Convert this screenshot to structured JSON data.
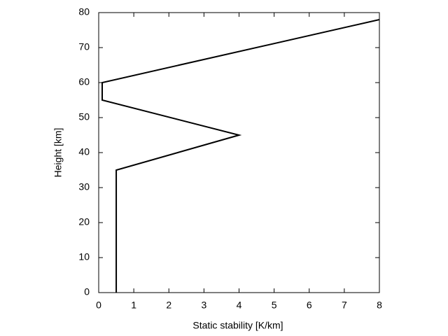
{
  "chart_data": {
    "type": "line",
    "xlabel": "Static stability [K/km]",
    "ylabel": "Height [km]",
    "x": [
      0.5,
      0.5,
      4,
      0.1,
      0.1,
      8
    ],
    "values": [
      0,
      35,
      45,
      55,
      60,
      78
    ],
    "color": "#000000",
    "xlim": [
      0,
      8
    ],
    "xticks": [
      0,
      1,
      2,
      3,
      4,
      5,
      6,
      7,
      8
    ],
    "ylim": [
      0,
      80
    ],
    "yticks": [
      0,
      10,
      20,
      30,
      40,
      50,
      60,
      70,
      80
    ],
    "grid": false
  }
}
